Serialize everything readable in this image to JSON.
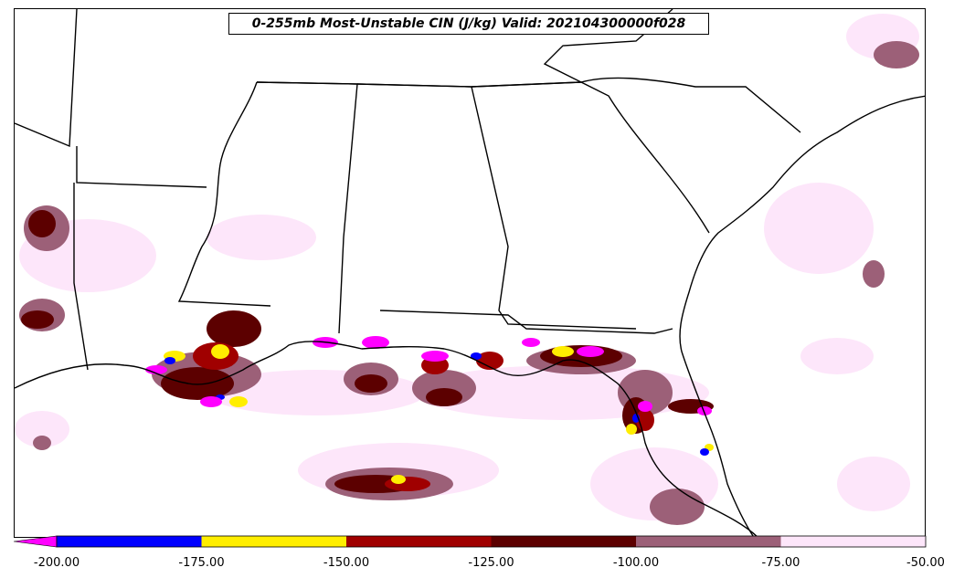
{
  "title": "0-255mb Most-Unstable CIN (J/kg) Valid: 202104300000f028",
  "colorbar": {
    "bins": [
      {
        "from": -200,
        "to": -175,
        "color": "#0000ff"
      },
      {
        "from": -175,
        "to": -150,
        "color": "#ffee00"
      },
      {
        "from": -150,
        "to": -125,
        "color": "#a00000"
      },
      {
        "from": -125,
        "to": -100,
        "color": "#5c0000"
      },
      {
        "from": -100,
        "to": -75,
        "color": "#9c6078"
      },
      {
        "from": -75,
        "to": -50,
        "color": "#fde6fa"
      }
    ],
    "extend_min_color": "#ff00ff",
    "ticks": [
      "-200.00",
      "-175.00",
      "-150.00",
      "-125.00",
      "-100.00",
      "-75.00",
      "-50.00"
    ]
  }
}
